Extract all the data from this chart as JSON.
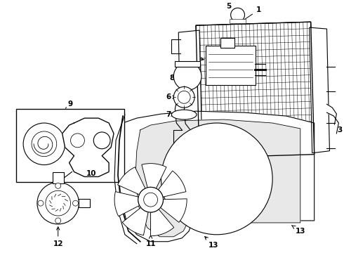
{
  "background_color": "#ffffff",
  "fig_width": 4.9,
  "fig_height": 3.6,
  "dpi": 100,
  "line_color": "#000000",
  "label_fontsize": 7.5,
  "line_width": 0.8
}
